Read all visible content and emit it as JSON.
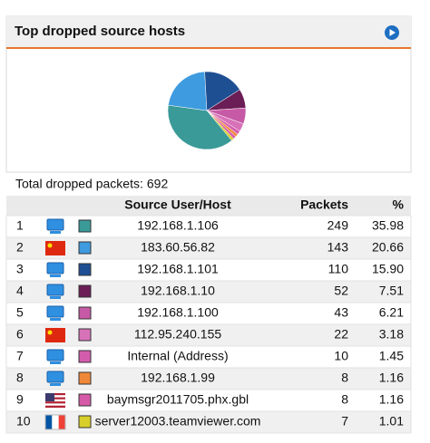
{
  "widget": {
    "title": "Top dropped source hosts",
    "summary": {
      "label": "Total dropped packets:",
      "total": 692
    },
    "table": {
      "headers": {
        "host": "Source User/Host",
        "packets": "Packets",
        "pct": "%"
      },
      "rows": [
        {
          "rank": 1,
          "icon": "computer",
          "color": "#3a9a98",
          "host": "192.168.1.106",
          "packets": 249,
          "pct": "35.98"
        },
        {
          "rank": 2,
          "icon": "flag-cn",
          "color": "#3e9be0",
          "host": "183.60.56.82",
          "packets": 143,
          "pct": "20.66"
        },
        {
          "rank": 3,
          "icon": "computer",
          "color": "#1f4f93",
          "host": "192.168.1.101",
          "packets": 110,
          "pct": "15.90"
        },
        {
          "rank": 4,
          "icon": "computer",
          "color": "#6b1d55",
          "host": "192.168.1.10",
          "packets": 52,
          "pct": "7.51"
        },
        {
          "rank": 5,
          "icon": "computer",
          "color": "#c75aa6",
          "host": "192.168.1.100",
          "packets": 43,
          "pct": "6.21"
        },
        {
          "rank": 6,
          "icon": "flag-cn",
          "color": "#d772b8",
          "host": "112.95.240.155",
          "packets": 22,
          "pct": "3.18"
        },
        {
          "rank": 7,
          "icon": "computer",
          "color": "#d45cad",
          "host": "Internal (Address)",
          "packets": 10,
          "pct": "1.45"
        },
        {
          "rank": 8,
          "icon": "computer",
          "color": "#f0883a",
          "host": "192.168.1.99",
          "packets": 8,
          "pct": "1.16"
        },
        {
          "rank": 9,
          "icon": "flag-us",
          "color": "#d65aa8",
          "host": "baymsgr2011705.phx.gbl",
          "packets": 8,
          "pct": "1.16"
        },
        {
          "rank": 10,
          "icon": "flag-fr",
          "color": "#d8cf2a",
          "host": "server12003.teamviewer.com",
          "packets": 7,
          "pct": "1.01"
        }
      ]
    }
  }
}
